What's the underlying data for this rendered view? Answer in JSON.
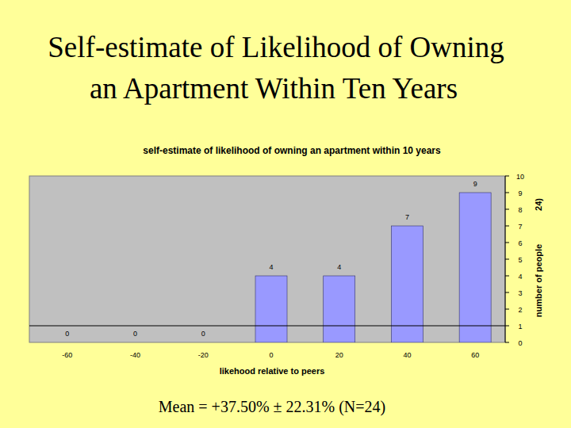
{
  "slide": {
    "title": [
      "Self-estimate of Likelihood of Owning",
      "an Apartment Within Ten Years"
    ],
    "footer": "Mean = +37.50% ± 22.31% (N=24)"
  },
  "chart_data": {
    "type": "bar",
    "title": "self-estimate of likelihood of owning an apartment within 10 years",
    "categories": [
      "-60",
      "-40",
      "-20",
      "0",
      "20",
      "40",
      "60"
    ],
    "values": [
      0,
      0,
      0,
      4,
      4,
      7,
      9
    ],
    "color": "#9999ff",
    "xlabel": "likehood relative to peers",
    "ylabel": "number of people",
    "ylabel_tail": "24)",
    "ylim": [
      0,
      10
    ],
    "yticks": [
      0,
      1,
      2,
      3,
      4,
      5,
      6,
      7,
      8,
      9,
      10
    ],
    "hline": 1,
    "grid": false,
    "data_labels": true
  }
}
